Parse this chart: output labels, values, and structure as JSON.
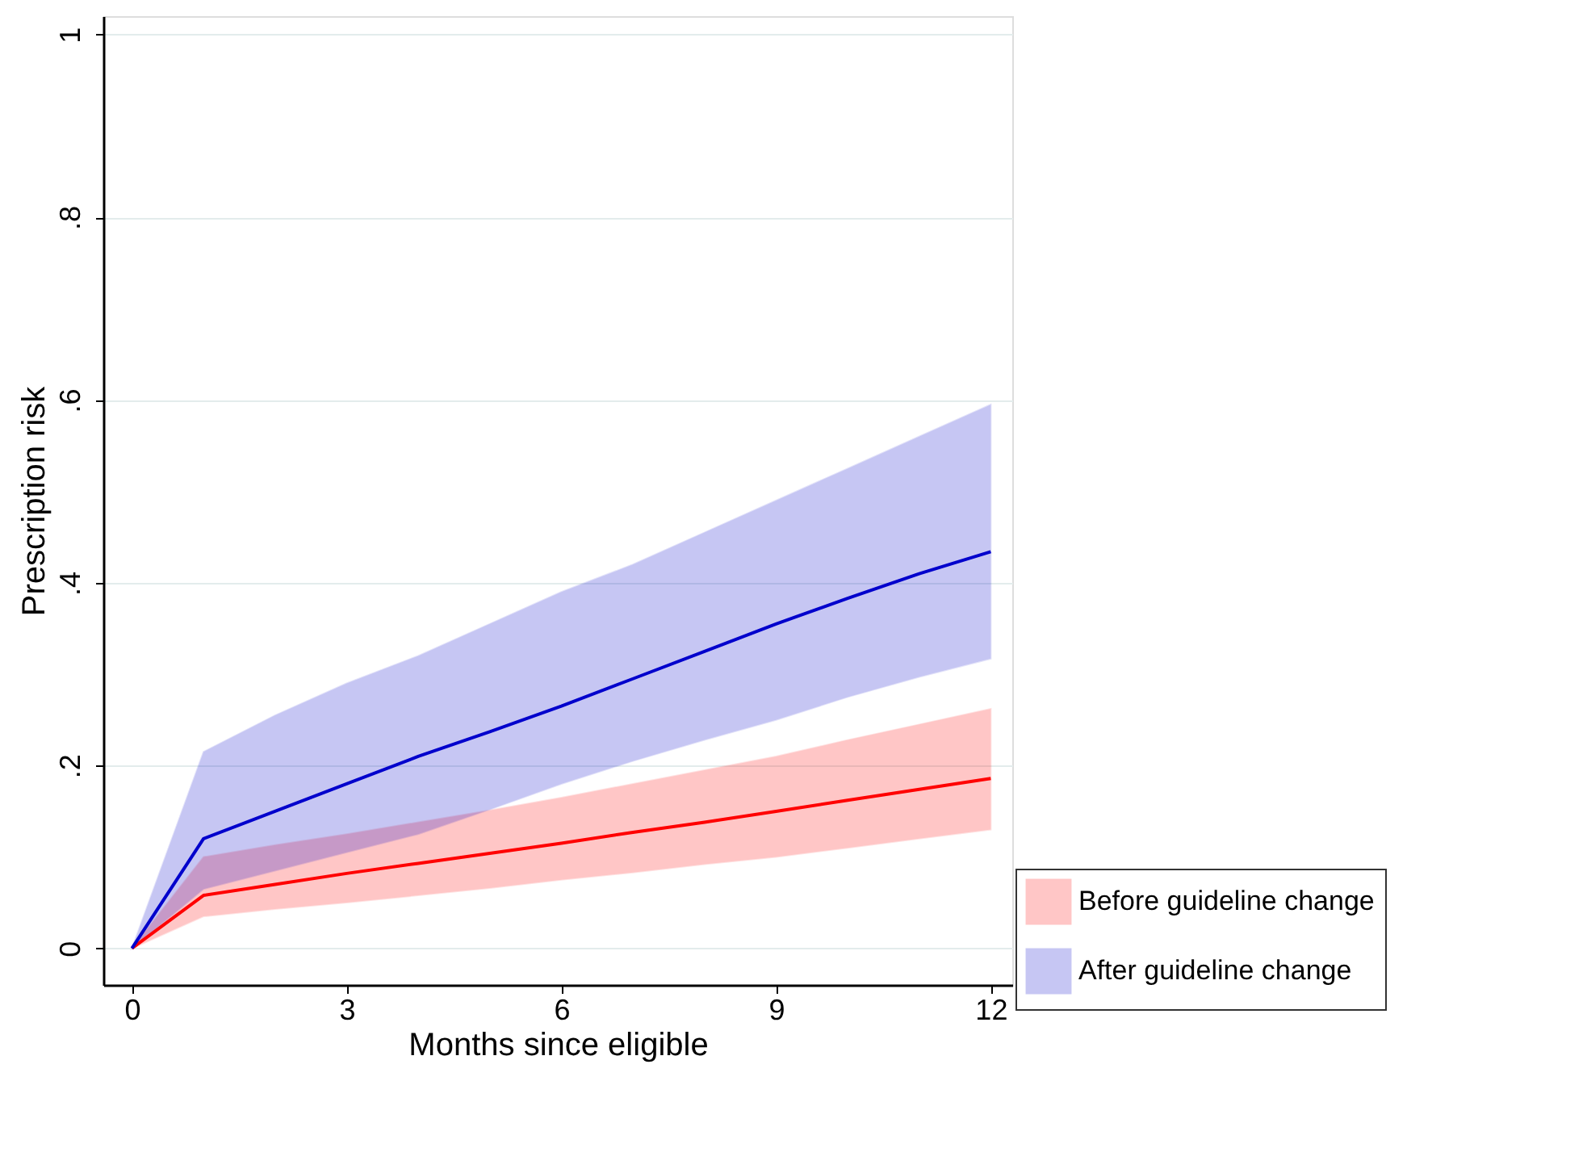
{
  "chart_data": {
    "type": "line",
    "xlabel": "Months since eligible",
    "ylabel": "Prescription risk",
    "x": [
      0,
      1,
      2,
      3,
      4,
      5,
      6,
      7,
      8,
      9,
      10,
      11,
      12
    ],
    "series": [
      {
        "name": "Before guideline change",
        "color": "#ff0000",
        "values": [
          0,
          0.058,
          0.07,
          0.082,
          0.093,
          0.104,
          0.115,
          0.127,
          0.138,
          0.15,
          0.162,
          0.174,
          0.186
        ],
        "lower": [
          0,
          0.035,
          0.043,
          0.05,
          0.058,
          0.066,
          0.075,
          0.083,
          0.092,
          0.1,
          0.11,
          0.12,
          0.13
        ],
        "upper": [
          0,
          0.1,
          0.113,
          0.125,
          0.138,
          0.151,
          0.165,
          0.18,
          0.195,
          0.21,
          0.228,
          0.245,
          0.262
        ]
      },
      {
        "name": "After guideline change",
        "color": "#0000cc",
        "values": [
          0,
          0.12,
          0.15,
          0.18,
          0.21,
          0.237,
          0.265,
          0.295,
          0.325,
          0.355,
          0.383,
          0.41,
          0.434
        ],
        "lower": [
          0,
          0.065,
          0.085,
          0.105,
          0.125,
          0.152,
          0.18,
          0.205,
          0.228,
          0.25,
          0.275,
          0.297,
          0.317
        ],
        "upper": [
          0,
          0.215,
          0.255,
          0.29,
          0.32,
          0.355,
          0.39,
          0.42,
          0.455,
          0.49,
          0.525,
          0.56,
          0.595
        ]
      }
    ],
    "xlim": [
      -0.4,
      12.3
    ],
    "ylim": [
      -0.04,
      1.02
    ],
    "xticks": [
      0,
      3,
      6,
      9,
      12
    ],
    "yticks": [
      0,
      {
        "value": 0.2,
        "label": ".2"
      },
      {
        "value": 0.4,
        "label": ".4"
      },
      {
        "value": 0.6,
        "label": ".6"
      },
      {
        "value": 0.8,
        "label": ".8"
      },
      1
    ],
    "grid": "y",
    "legend": "bottom right",
    "marker": "none",
    "line_style": "solid"
  }
}
